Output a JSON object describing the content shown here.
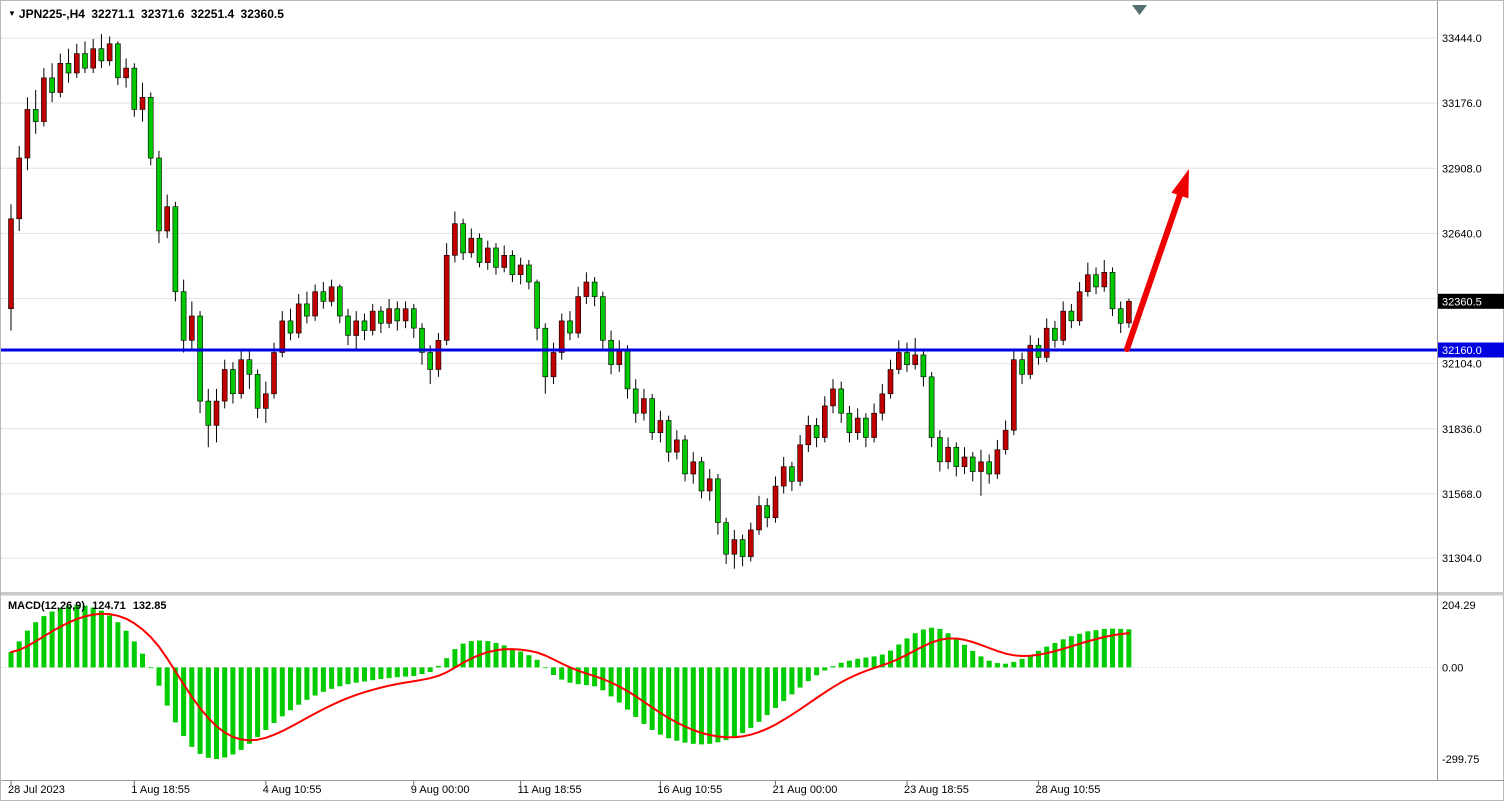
{
  "header": {
    "symbol_period": "JPN225-,H4",
    "open": "32271.1",
    "high": "32371.6",
    "low": "32251.4",
    "close": "32360.5"
  },
  "macd_panel": {
    "label": "MACD(12,26,9)",
    "main_value": "124.71",
    "signal_value": "132.85",
    "axis_labels": [
      "204.29",
      "0.00",
      "-299.75"
    ],
    "axis_values": [
      204.29,
      0,
      -299.75
    ]
  },
  "price_axis": {
    "labels": [
      "33444.0",
      "33176.0",
      "32908.0",
      "32640.0",
      "32104.0",
      "31836.0",
      "31568.0",
      "31304.0"
    ],
    "label_prices": [
      33444,
      33176,
      32908,
      32640,
      32104,
      31836,
      31568,
      31304
    ],
    "last_price_tag": {
      "text": "32360.5",
      "price": 32360.5
    },
    "line_price_tag": {
      "text": "32160.0",
      "price": 32160.0
    }
  },
  "time_axis": {
    "labels": [
      "28 Jul 2023",
      "1 Aug 18:55",
      "4 Aug 10:55",
      "9 Aug 00:00",
      "11 Aug 18:55",
      "16 Aug 10:55",
      "21 Aug 00:00",
      "23 Aug 18:55",
      "28 Aug 10:55"
    ],
    "label_bars": [
      0,
      15,
      31,
      49,
      62,
      79,
      93,
      109,
      125
    ]
  },
  "colors": {
    "bull": "#c00000",
    "bear": "#00c800",
    "wick": "#000000",
    "grid": "#e3e3e3",
    "blue_line": "#0000e0",
    "arrow": "#ee0000",
    "macd_hist": "#00cc00",
    "macd_signal": "#ff0000",
    "tag_bg": "#000000",
    "tag_fg": "#ffffff",
    "separator": "#9a9a9a",
    "shift_marker": "#557070"
  },
  "chart_data": {
    "type": "candlestick",
    "symbol": "JPN225-",
    "timeframe": "H4",
    "title": "JPN225-,H4 32271.1 32371.6 32251.4 32360.5",
    "last_price": 32360.5,
    "horizontal_line": 32160.0,
    "gridline_prices": [
      33444,
      33176,
      32908,
      32640,
      32372,
      32104,
      31836,
      31568,
      31304
    ],
    "visible_price_range": [
      31200,
      33490
    ],
    "trend_arrow": {
      "from_price": 32160,
      "to_price": 32900,
      "note": "red up arrow drawn after last candle"
    },
    "candles": [
      [
        32330,
        32760,
        32240,
        32700
      ],
      [
        32700,
        33000,
        32650,
        32950
      ],
      [
        32950,
        33200,
        32900,
        33150
      ],
      [
        33150,
        33230,
        33050,
        33100
      ],
      [
        33100,
        33320,
        33080,
        33280
      ],
      [
        33280,
        33340,
        33180,
        33220
      ],
      [
        33220,
        33380,
        33200,
        33340
      ],
      [
        33340,
        33400,
        33260,
        33300
      ],
      [
        33300,
        33420,
        33280,
        33380
      ],
      [
        33380,
        33430,
        33300,
        33320
      ],
      [
        33320,
        33440,
        33300,
        33400
      ],
      [
        33400,
        33460,
        33320,
        33350
      ],
      [
        33350,
        33450,
        33330,
        33420
      ],
      [
        33420,
        33430,
        33250,
        33280
      ],
      [
        33280,
        33360,
        33240,
        33320
      ],
      [
        33320,
        33340,
        33120,
        33150
      ],
      [
        33150,
        33260,
        33100,
        33200
      ],
      [
        33200,
        33220,
        32920,
        32950
      ],
      [
        32950,
        32980,
        32600,
        32650
      ],
      [
        32650,
        32800,
        32620,
        32750
      ],
      [
        32750,
        32770,
        32360,
        32400
      ],
      [
        32400,
        32450,
        32150,
        32200
      ],
      [
        32200,
        32360,
        32160,
        32300
      ],
      [
        32300,
        32320,
        31900,
        31950
      ],
      [
        31950,
        32000,
        31760,
        31850
      ],
      [
        31850,
        32000,
        31780,
        31950
      ],
      [
        31950,
        32120,
        31920,
        32080
      ],
      [
        32080,
        32110,
        31940,
        31980
      ],
      [
        31980,
        32160,
        31960,
        32120
      ],
      [
        32120,
        32160,
        32000,
        32060
      ],
      [
        32060,
        32080,
        31880,
        31920
      ],
      [
        31920,
        32030,
        31860,
        31980
      ],
      [
        31980,
        32190,
        31960,
        32150
      ],
      [
        32150,
        32320,
        32130,
        32280
      ],
      [
        32280,
        32330,
        32200,
        32230
      ],
      [
        32230,
        32390,
        32210,
        32350
      ],
      [
        32350,
        32400,
        32270,
        32300
      ],
      [
        32300,
        32430,
        32280,
        32400
      ],
      [
        32400,
        32440,
        32330,
        32360
      ],
      [
        32360,
        32450,
        32340,
        32420
      ],
      [
        32420,
        32430,
        32270,
        32300
      ],
      [
        32300,
        32330,
        32180,
        32220
      ],
      [
        32220,
        32320,
        32160,
        32280
      ],
      [
        32280,
        32310,
        32200,
        32240
      ],
      [
        32240,
        32350,
        32220,
        32320
      ],
      [
        32320,
        32340,
        32230,
        32270
      ],
      [
        32270,
        32370,
        32250,
        32330
      ],
      [
        32330,
        32360,
        32240,
        32280
      ],
      [
        32280,
        32360,
        32250,
        32330
      ],
      [
        32330,
        32350,
        32210,
        32250
      ],
      [
        32250,
        32270,
        32100,
        32150
      ],
      [
        32150,
        32180,
        32020,
        32080
      ],
      [
        32080,
        32230,
        32050,
        32200
      ],
      [
        32200,
        32600,
        32180,
        32550
      ],
      [
        32550,
        32730,
        32520,
        32680
      ],
      [
        32680,
        32700,
        32530,
        32560
      ],
      [
        32560,
        32660,
        32540,
        32620
      ],
      [
        32620,
        32640,
        32500,
        32520
      ],
      [
        32520,
        32610,
        32490,
        32580
      ],
      [
        32580,
        32600,
        32470,
        32500
      ],
      [
        32500,
        32590,
        32480,
        32550
      ],
      [
        32550,
        32570,
        32440,
        32470
      ],
      [
        32470,
        32540,
        32430,
        32510
      ],
      [
        32510,
        32530,
        32410,
        32440
      ],
      [
        32440,
        32450,
        32200,
        32250
      ],
      [
        32250,
        32270,
        31980,
        32050
      ],
      [
        32050,
        32190,
        32020,
        32150
      ],
      [
        32150,
        32310,
        32120,
        32280
      ],
      [
        32280,
        32320,
        32200,
        32230
      ],
      [
        32230,
        32420,
        32210,
        32380
      ],
      [
        32380,
        32480,
        32350,
        32440
      ],
      [
        32440,
        32460,
        32340,
        32380
      ],
      [
        32380,
        32400,
        32160,
        32200
      ],
      [
        32200,
        32240,
        32060,
        32100
      ],
      [
        32100,
        32200,
        32070,
        32160
      ],
      [
        32160,
        32180,
        31960,
        32000
      ],
      [
        32000,
        32040,
        31860,
        31900
      ],
      [
        31900,
        32000,
        31870,
        31960
      ],
      [
        31960,
        31980,
        31790,
        31820
      ],
      [
        31820,
        31910,
        31780,
        31870
      ],
      [
        31870,
        31890,
        31700,
        31740
      ],
      [
        31740,
        31830,
        31710,
        31790
      ],
      [
        31790,
        31810,
        31620,
        31650
      ],
      [
        31650,
        31740,
        31610,
        31700
      ],
      [
        31700,
        31720,
        31550,
        31580
      ],
      [
        31580,
        31670,
        31540,
        31630
      ],
      [
        31630,
        31650,
        31400,
        31450
      ],
      [
        31450,
        31470,
        31280,
        31320
      ],
      [
        31320,
        31420,
        31260,
        31380
      ],
      [
        31380,
        31400,
        31270,
        31310
      ],
      [
        31310,
        31450,
        31290,
        31420
      ],
      [
        31420,
        31560,
        31400,
        31520
      ],
      [
        31520,
        31550,
        31430,
        31470
      ],
      [
        31470,
        31640,
        31450,
        31600
      ],
      [
        31600,
        31720,
        31570,
        31680
      ],
      [
        31680,
        31700,
        31580,
        31620
      ],
      [
        31620,
        31810,
        31600,
        31770
      ],
      [
        31770,
        31890,
        31740,
        31850
      ],
      [
        31850,
        31880,
        31760,
        31800
      ],
      [
        31800,
        31970,
        31780,
        31930
      ],
      [
        31930,
        32040,
        31900,
        32000
      ],
      [
        32000,
        32030,
        31860,
        31900
      ],
      [
        31900,
        31930,
        31780,
        31820
      ],
      [
        31820,
        31920,
        31790,
        31880
      ],
      [
        31880,
        31900,
        31760,
        31800
      ],
      [
        31800,
        31940,
        31780,
        31900
      ],
      [
        31900,
        32020,
        31870,
        31980
      ],
      [
        31980,
        32120,
        31960,
        32080
      ],
      [
        32080,
        32200,
        32060,
        32150
      ],
      [
        32150,
        32190,
        32070,
        32100
      ],
      [
        32100,
        32210,
        32080,
        32140
      ],
      [
        32140,
        32160,
        32010,
        32050
      ],
      [
        32050,
        32070,
        31760,
        31800
      ],
      [
        31800,
        31830,
        31660,
        31700
      ],
      [
        31700,
        31800,
        31670,
        31760
      ],
      [
        31760,
        31780,
        31640,
        31680
      ],
      [
        31680,
        31760,
        31650,
        31720
      ],
      [
        31720,
        31740,
        31620,
        31660
      ],
      [
        31660,
        31750,
        31560,
        31700
      ],
      [
        31700,
        31730,
        31610,
        31650
      ],
      [
        31650,
        31790,
        31630,
        31750
      ],
      [
        31750,
        31870,
        31730,
        31830
      ],
      [
        31830,
        32160,
        31810,
        32120
      ],
      [
        32120,
        32150,
        32020,
        32060
      ],
      [
        32060,
        32220,
        32040,
        32180
      ],
      [
        32180,
        32210,
        32100,
        32130
      ],
      [
        32130,
        32290,
        32110,
        32250
      ],
      [
        32250,
        32280,
        32170,
        32200
      ],
      [
        32200,
        32360,
        32180,
        32320
      ],
      [
        32320,
        32350,
        32250,
        32280
      ],
      [
        32280,
        32440,
        32260,
        32400
      ],
      [
        32400,
        32520,
        32380,
        32470
      ],
      [
        32470,
        32500,
        32390,
        32420
      ],
      [
        32420,
        32530,
        32400,
        32480
      ],
      [
        32480,
        32500,
        32300,
        32330
      ],
      [
        32330,
        32360,
        32230,
        32270
      ],
      [
        32271.1,
        32371.6,
        32251.4,
        32360.5
      ]
    ],
    "macd": {
      "params": "12,26,9",
      "signal_period": 9,
      "display_main": 124.71,
      "display_signal": 132.85,
      "range": [
        -299.75,
        204.29
      ],
      "values": [
        50,
        85,
        120,
        148,
        168,
        183,
        194,
        200,
        204.29,
        202,
        196,
        186,
        170,
        148,
        120,
        85,
        45,
        0,
        -60,
        -125,
        -180,
        -225,
        -260,
        -283,
        -296,
        -299.75,
        -295,
        -285,
        -270,
        -250,
        -228,
        -205,
        -182,
        -160,
        -140,
        -122,
        -106,
        -92,
        -80,
        -70,
        -62,
        -55,
        -50,
        -46,
        -42,
        -38,
        -35,
        -32,
        -30,
        -28,
        -22,
        -15,
        5,
        30,
        60,
        78,
        86,
        88,
        86,
        80,
        72,
        62,
        52,
        40,
        25,
        0,
        -25,
        -40,
        -50,
        -55,
        -58,
        -62,
        -75,
        -95,
        -115,
        -138,
        -162,
        -185,
        -205,
        -220,
        -232,
        -240,
        -246,
        -250,
        -252,
        -250,
        -245,
        -238,
        -228,
        -215,
        -198,
        -178,
        -156,
        -133,
        -110,
        -88,
        -66,
        -45,
        -26,
        -10,
        4,
        15,
        22,
        28,
        32,
        36,
        42,
        55,
        75,
        95,
        112,
        124,
        130,
        126,
        112,
        94,
        74,
        54,
        36,
        22,
        14,
        12,
        18,
        28,
        40,
        54,
        68,
        80,
        92,
        102,
        110,
        118,
        122,
        126,
        127,
        126,
        124.71
      ]
    }
  }
}
